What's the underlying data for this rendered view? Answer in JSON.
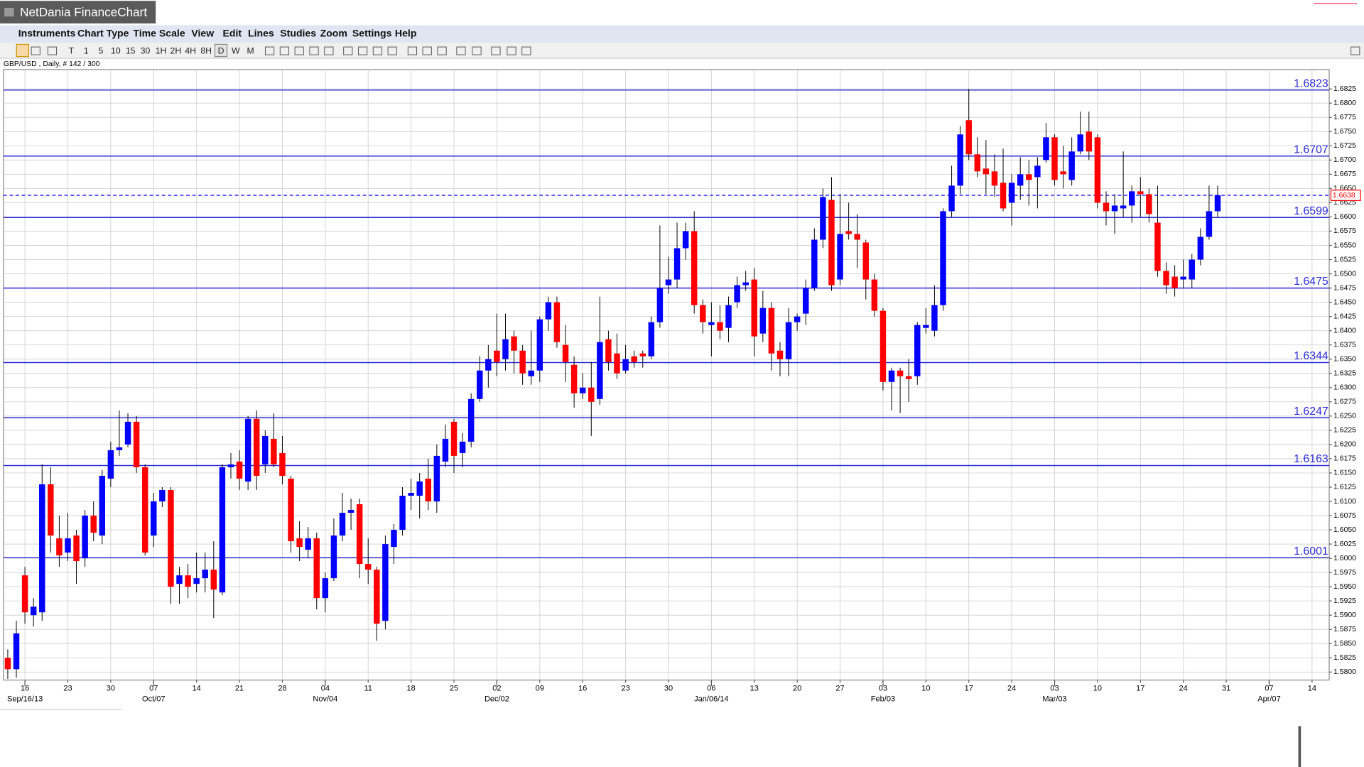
{
  "window": {
    "title": "NetDania FinanceChart"
  },
  "menu": [
    "Instruments",
    "Chart Type",
    "Time Scale",
    "View",
    "Edit",
    "Lines",
    "Studies",
    "Zoom",
    "Settings",
    "Help"
  ],
  "toolbar": [
    "T",
    "1",
    "5",
    "10",
    "15",
    "30",
    "1H",
    "2H",
    "4H",
    "8H",
    "D",
    "W",
    "M"
  ],
  "chart_data": {
    "type": "candlestick",
    "title": "GBP/USD , Daily, # 142 / 300",
    "up_color": "#0000ff",
    "down_color": "#ff0000",
    "grid": true,
    "open": [
      1.5825,
      1.5805,
      1.597,
      1.59,
      1.5905,
      1.613,
      1.6035,
      1.601,
      1.604,
      1.6,
      1.6075,
      1.604,
      1.614,
      1.619,
      1.62,
      1.624,
      1.616,
      1.604,
      1.61,
      1.612,
      1.5955,
      1.597,
      1.5955,
      1.5965,
      1.598,
      1.594,
      1.616,
      1.617,
      1.6135,
      1.6245,
      1.6165,
      1.621,
      1.6185,
      1.614,
      1.6035,
      1.6015,
      1.6035,
      1.593,
      1.5965,
      1.604,
      1.608,
      1.6095,
      1.599,
      1.598,
      1.589,
      1.602,
      1.605,
      1.611,
      1.611,
      1.614,
      1.61,
      1.617,
      1.624,
      1.6185,
      1.6205,
      1.628,
      1.633,
      1.6365,
      1.635,
      1.639,
      1.6365,
      1.632,
      1.633,
      1.642,
      1.645,
      1.6375,
      1.634,
      1.629,
      1.63,
      1.628,
      1.6385,
      1.636,
      1.633,
      1.6355,
      1.636,
      1.6355,
      1.6415,
      1.648,
      1.649,
      1.6545,
      1.6575,
      1.6445,
      1.641,
      1.6415,
      1.6405,
      1.645,
      1.648,
      1.649,
      1.6395,
      1.644,
      1.6365,
      1.635,
      1.6415,
      1.643,
      1.6475,
      1.656,
      1.663,
      1.649,
      1.6575,
      1.657,
      1.6555,
      1.649,
      1.6435,
      1.631,
      1.633,
      1.632,
      1.632,
      1.6405,
      1.64,
      1.6445,
      1.661,
      1.6655,
      1.677,
      1.671,
      1.6685,
      1.668,
      1.666,
      1.6625,
      1.6655,
      1.6675,
      1.667,
      1.67,
      1.674,
      1.668,
      1.6665,
      1.6715,
      1.675,
      1.674,
      1.6625,
      1.661,
      1.6615,
      1.662,
      1.6645,
      1.664,
      1.659,
      1.6505,
      1.6495,
      1.649,
      1.649,
      1.6525,
      1.6565,
      1.661
    ],
    "high": [
      1.584,
      1.589,
      1.5985,
      1.593,
      1.6165,
      1.616,
      1.6075,
      1.608,
      1.605,
      1.6085,
      1.61,
      1.6155,
      1.6205,
      1.626,
      1.6255,
      1.625,
      1.6165,
      1.6115,
      1.6125,
      1.6125,
      1.5985,
      1.599,
      1.601,
      1.601,
      1.603,
      1.6165,
      1.6185,
      1.619,
      1.625,
      1.626,
      1.6225,
      1.6255,
      1.6215,
      1.6145,
      1.6065,
      1.6055,
      1.6045,
      1.5975,
      1.607,
      1.6115,
      1.6105,
      1.6105,
      1.6035,
      1.5985,
      1.604,
      1.606,
      1.6125,
      1.614,
      1.615,
      1.6175,
      1.62,
      1.6235,
      1.6245,
      1.622,
      1.629,
      1.6355,
      1.6375,
      1.643,
      1.643,
      1.64,
      1.6375,
      1.64,
      1.6425,
      1.646,
      1.646,
      1.641,
      1.6355,
      1.6325,
      1.6345,
      1.646,
      1.64,
      1.6395,
      1.6375,
      1.6365,
      1.6365,
      1.6425,
      1.6585,
      1.653,
      1.659,
      1.659,
      1.661,
      1.6455,
      1.645,
      1.6445,
      1.646,
      1.6495,
      1.6505,
      1.651,
      1.647,
      1.645,
      1.638,
      1.644,
      1.643,
      1.649,
      1.658,
      1.665,
      1.667,
      1.664,
      1.6625,
      1.6605,
      1.656,
      1.65,
      1.644,
      1.6335,
      1.6335,
      1.635,
      1.6415,
      1.644,
      1.648,
      1.6615,
      1.669,
      1.676,
      1.6825,
      1.674,
      1.6735,
      1.671,
      1.672,
      1.6675,
      1.6705,
      1.67,
      1.6705,
      1.6765,
      1.6745,
      1.6725,
      1.674,
      1.6785,
      1.6785,
      1.6745,
      1.6645,
      1.664,
      1.6715,
      1.6655,
      1.667,
      1.665,
      1.6655,
      1.652,
      1.6515,
      1.6525,
      1.6535,
      1.658,
      1.6655,
      1.6655
    ],
    "low": [
      1.5788,
      1.579,
      1.5885,
      1.588,
      1.589,
      1.601,
      1.5985,
      1.5995,
      1.5955,
      1.5985,
      1.603,
      1.6025,
      1.6125,
      1.618,
      1.6195,
      1.615,
      1.6005,
      1.602,
      1.609,
      1.592,
      1.592,
      1.593,
      1.594,
      1.594,
      1.5895,
      1.5935,
      1.614,
      1.612,
      1.612,
      1.612,
      1.615,
      1.616,
      1.613,
      1.601,
      1.5995,
      1.6,
      1.591,
      1.5905,
      1.596,
      1.603,
      1.605,
      1.5965,
      1.5955,
      1.5855,
      1.5875,
      1.599,
      1.604,
      1.6085,
      1.607,
      1.6085,
      1.608,
      1.616,
      1.615,
      1.616,
      1.6195,
      1.6275,
      1.63,
      1.632,
      1.633,
      1.6325,
      1.6305,
      1.6305,
      1.631,
      1.64,
      1.637,
      1.631,
      1.6265,
      1.628,
      1.6215,
      1.627,
      1.633,
      1.6315,
      1.6325,
      1.6335,
      1.6335,
      1.635,
      1.6405,
      1.6465,
      1.6475,
      1.6525,
      1.643,
      1.6395,
      1.6355,
      1.6385,
      1.638,
      1.644,
      1.647,
      1.6355,
      1.638,
      1.633,
      1.632,
      1.632,
      1.64,
      1.641,
      1.647,
      1.6545,
      1.647,
      1.648,
      1.656,
      1.651,
      1.6455,
      1.6425,
      1.6295,
      1.626,
      1.6255,
      1.6275,
      1.6305,
      1.6395,
      1.639,
      1.6435,
      1.66,
      1.664,
      1.67,
      1.667,
      1.664,
      1.6635,
      1.661,
      1.6585,
      1.663,
      1.662,
      1.6615,
      1.6695,
      1.6655,
      1.665,
      1.6655,
      1.671,
      1.67,
      1.6615,
      1.6585,
      1.657,
      1.66,
      1.659,
      1.66,
      1.659,
      1.6495,
      1.6465,
      1.646,
      1.6475,
      1.6475,
      1.6515,
      1.656,
      1.66
    ],
    "close": [
      1.5805,
      1.5868,
      1.5905,
      1.5915,
      1.613,
      1.604,
      1.6005,
      1.6035,
      1.5995,
      1.6075,
      1.6045,
      1.6145,
      1.619,
      1.6195,
      1.624,
      1.616,
      1.601,
      1.61,
      1.612,
      1.595,
      1.597,
      1.595,
      1.5965,
      1.598,
      1.5945,
      1.616,
      1.6165,
      1.614,
      1.6245,
      1.6145,
      1.6215,
      1.6165,
      1.6145,
      1.603,
      1.602,
      1.6035,
      1.593,
      1.5965,
      1.604,
      1.608,
      1.6085,
      1.599,
      1.598,
      1.5885,
      1.6025,
      1.605,
      1.611,
      1.6115,
      1.6135,
      1.61,
      1.618,
      1.621,
      1.618,
      1.6205,
      1.628,
      1.633,
      1.635,
      1.6345,
      1.6385,
      1.6365,
      1.6325,
      1.633,
      1.642,
      1.645,
      1.638,
      1.6345,
      1.629,
      1.63,
      1.6275,
      1.638,
      1.6345,
      1.6325,
      1.635,
      1.6345,
      1.6355,
      1.6415,
      1.6475,
      1.649,
      1.6545,
      1.6575,
      1.6445,
      1.6415,
      1.6415,
      1.64,
      1.6445,
      1.648,
      1.6485,
      1.639,
      1.644,
      1.636,
      1.635,
      1.6415,
      1.6425,
      1.6475,
      1.656,
      1.6635,
      1.648,
      1.657,
      1.657,
      1.656,
      1.649,
      1.6435,
      1.631,
      1.633,
      1.632,
      1.6315,
      1.641,
      1.641,
      1.6445,
      1.661,
      1.6655,
      1.6745,
      1.671,
      1.668,
      1.6675,
      1.6655,
      1.6615,
      1.666,
      1.6675,
      1.6665,
      1.669,
      1.674,
      1.6665,
      1.6675,
      1.6715,
      1.6745,
      1.6715,
      1.6625,
      1.661,
      1.662,
      1.662,
      1.6645,
      1.664,
      1.6605,
      1.6505,
      1.648,
      1.6475,
      1.6495,
      1.6525,
      1.6565,
      1.661,
      1.6638
    ],
    "levels": [
      1.6823,
      1.6707,
      1.6599,
      1.6475,
      1.6344,
      1.6247,
      1.6163,
      1.6001
    ],
    "level_color": "#2b2bd6",
    "xlim": [
      -0.5,
      154
    ],
    "ylim": [
      1.5786,
      1.6859
    ],
    "yticks": [
      {
        "value": 1.58,
        "label": "1.5800"
      },
      1.5825,
      {
        "value": 1.585,
        "label": "1.5850"
      },
      1.5875,
      {
        "value": 1.59,
        "label": "1.5900"
      },
      1.5925,
      {
        "value": 1.595,
        "label": "1.5950"
      },
      1.5975,
      {
        "value": 1.6,
        "label": "1.6000"
      },
      1.6025,
      {
        "value": 1.605,
        "label": "1.6050"
      },
      1.6075,
      {
        "value": 1.61,
        "label": "1.6100"
      },
      1.6125,
      {
        "value": 1.615,
        "label": "1.6150"
      },
      1.6175,
      {
        "value": 1.62,
        "label": "1.6200"
      },
      1.6225,
      {
        "value": 1.625,
        "label": "1.6250"
      },
      1.6275,
      {
        "value": 1.63,
        "label": "1.6300"
      },
      1.6325,
      {
        "value": 1.635,
        "label": "1.6350"
      },
      1.6375,
      {
        "value": 1.64,
        "label": "1.6400"
      },
      1.6425,
      {
        "value": 1.645,
        "label": "1.6450"
      },
      1.6475,
      {
        "value": 1.65,
        "label": "1.6500"
      },
      1.6525,
      {
        "value": 1.655,
        "label": "1.6550"
      },
      1.6575,
      {
        "value": 1.66,
        "label": "1.6600"
      },
      1.6625,
      {
        "value": 1.665,
        "label": "1.6650"
      },
      1.6675,
      {
        "value": 1.67,
        "label": "1.6700"
      },
      1.6725,
      {
        "value": 1.675,
        "label": "1.6750"
      },
      1.6775,
      {
        "value": 1.68,
        "label": "1.6800"
      },
      1.6825
    ],
    "xticks": [
      {
        "value": 2,
        "label": "16"
      },
      {
        "value": 7,
        "label": "23"
      },
      {
        "value": 12,
        "label": "30"
      },
      {
        "value": 17,
        "label": "07"
      },
      {
        "value": 22,
        "label": "14"
      },
      {
        "value": 27,
        "label": "21"
      },
      {
        "value": 32,
        "label": "28"
      },
      {
        "value": 37,
        "label": "04"
      },
      {
        "value": 42,
        "label": "11"
      },
      {
        "value": 47,
        "label": "18"
      },
      {
        "value": 52,
        "label": "25"
      },
      {
        "value": 57,
        "label": "02"
      },
      {
        "value": 62,
        "label": "09"
      },
      {
        "value": 67,
        "label": "16"
      },
      {
        "value": 72,
        "label": "23"
      },
      {
        "value": 77,
        "label": "30"
      },
      {
        "value": 82,
        "label": "06"
      },
      {
        "value": 87,
        "label": "13"
      },
      {
        "value": 92,
        "label": "20"
      },
      {
        "value": 97,
        "label": "27"
      },
      {
        "value": 102,
        "label": "03"
      },
      {
        "value": 107,
        "label": "10"
      },
      {
        "value": 112,
        "label": "17"
      },
      {
        "value": 117,
        "label": "24"
      },
      {
        "value": 122,
        "label": "03"
      },
      {
        "value": 127,
        "label": "10"
      },
      {
        "value": 132,
        "label": "17"
      },
      {
        "value": 137,
        "label": "24"
      },
      {
        "value": 142,
        "label": "31"
      },
      {
        "value": 147,
        "label": "07"
      },
      {
        "value": 152,
        "label": "14"
      }
    ],
    "xticks_secondary": [
      {
        "value": 2,
        "label": "Sep/16/13"
      },
      {
        "value": 17,
        "label": "Oct/07"
      },
      {
        "value": 37,
        "label": "Nov/04"
      },
      {
        "value": 57,
        "label": "Dec/02"
      },
      {
        "value": 82,
        "label": "Jan/06/14"
      },
      {
        "value": 102,
        "label": "Feb/03"
      },
      {
        "value": 122,
        "label": "Mar/03"
      },
      {
        "value": 147,
        "label": "Apr/07"
      }
    ]
  }
}
